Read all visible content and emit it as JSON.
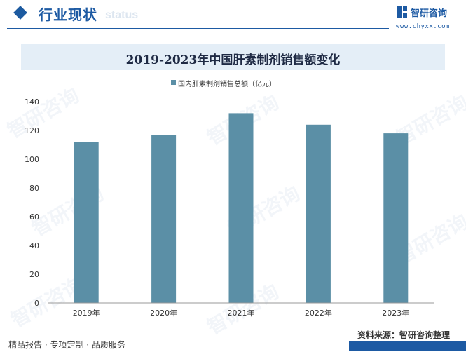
{
  "header": {
    "section_title": "行业现状",
    "ghost_word": "status",
    "brand_name": "智研咨询",
    "brand_url": "www.chyxx.com"
  },
  "footer": {
    "left_text": "精品报告 · 专项定制 · 品质服务",
    "source_text": "资料来源：智研咨询整理"
  },
  "watermark_text": "智研咨询",
  "colors": {
    "bar": "#5b8fa6",
    "brand": "#1d5aa3",
    "title_band": "#e4eef7"
  },
  "chart_data": {
    "type": "bar",
    "title": "2019-2023年中国肝素制剂销售额变化",
    "categories": [
      "2019年",
      "2020年",
      "2021年",
      "2022年",
      "2023年"
    ],
    "series": [
      {
        "name": "国内肝素制剂销售总额（亿元）",
        "values": [
          112,
          117,
          132,
          124,
          118
        ]
      }
    ],
    "ylim": [
      0,
      140
    ],
    "yticks": [
      0,
      20,
      40,
      60,
      80,
      100,
      120,
      140
    ],
    "grid": false,
    "legend_position": "top-center"
  }
}
